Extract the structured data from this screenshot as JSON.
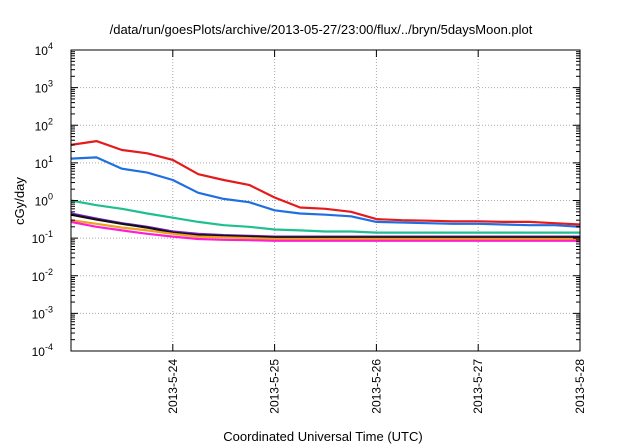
{
  "chart_data": {
    "type": "line",
    "title": "/data/run/goesPlots/archive/2013-05-27/23:00/flux/../bryn/5daysMoon.plot",
    "xlabel": "Coordinated Universal Time (UTC)",
    "ylabel": "cGy/day",
    "y_scale": "log",
    "ylim": [
      0.0001,
      10000
    ],
    "xlim": [
      "2013-05-23T00:00",
      "2013-05-28T00:00"
    ],
    "grid": true,
    "legend": "none",
    "x_tick_labels": [
      "2013-5-24",
      "2013-5-25",
      "2013-5-26",
      "2013-5-27",
      "2013-5-28"
    ],
    "y_ticks": [
      {
        "value": 0.0001,
        "base": "10",
        "exp": "-4"
      },
      {
        "value": 0.001,
        "base": "10",
        "exp": "-3"
      },
      {
        "value": 0.01,
        "base": "10",
        "exp": "-2"
      },
      {
        "value": 0.1,
        "base": "10",
        "exp": "-1"
      },
      {
        "value": 1,
        "base": "10",
        "exp": "0"
      },
      {
        "value": 10,
        "base": "10",
        "exp": "1"
      },
      {
        "value": 100,
        "base": "10",
        "exp": "2"
      },
      {
        "value": 1000,
        "base": "10",
        "exp": "3"
      },
      {
        "value": 10000,
        "base": "10",
        "exp": "4"
      }
    ],
    "x": [
      "2013-05-23T00:00",
      "2013-05-23T06:00",
      "2013-05-23T12:00",
      "2013-05-23T18:00",
      "2013-05-24T00:00",
      "2013-05-24T06:00",
      "2013-05-24T12:00",
      "2013-05-24T18:00",
      "2013-05-25T00:00",
      "2013-05-25T06:00",
      "2013-05-25T12:00",
      "2013-05-25T18:00",
      "2013-05-26T00:00",
      "2013-05-26T06:00",
      "2013-05-26T12:00",
      "2013-05-26T18:00",
      "2013-05-27T00:00",
      "2013-05-27T06:00",
      "2013-05-27T12:00",
      "2013-05-27T18:00",
      "2013-05-28T00:00"
    ],
    "series": [
      {
        "color": "#e41a1c",
        "values": [
          30,
          38,
          22,
          18,
          12,
          5,
          3.5,
          2.6,
          1.2,
          0.65,
          0.6,
          0.5,
          0.32,
          0.3,
          0.29,
          0.28,
          0.28,
          0.27,
          0.27,
          0.25,
          0.23
        ]
      },
      {
        "color": "#1f6fe0",
        "values": [
          13,
          14,
          7,
          5.5,
          3.5,
          1.6,
          1.1,
          0.9,
          0.55,
          0.45,
          0.42,
          0.38,
          0.27,
          0.26,
          0.25,
          0.24,
          0.24,
          0.23,
          0.22,
          0.22,
          0.2
        ]
      },
      {
        "color": "#1fbf8f",
        "values": [
          1.0,
          0.75,
          0.6,
          0.45,
          0.35,
          0.27,
          0.22,
          0.2,
          0.17,
          0.16,
          0.15,
          0.15,
          0.14,
          0.14,
          0.14,
          0.14,
          0.14,
          0.14,
          0.14,
          0.14,
          0.14
        ]
      },
      {
        "color": "#7a1fd0",
        "values": [
          0.45,
          0.33,
          0.25,
          0.2,
          0.15,
          0.13,
          0.12,
          0.115,
          0.11,
          0.11,
          0.11,
          0.11,
          0.11,
          0.11,
          0.11,
          0.11,
          0.11,
          0.11,
          0.11,
          0.11,
          0.11
        ]
      },
      {
        "color": "#111111",
        "values": [
          0.42,
          0.31,
          0.24,
          0.19,
          0.14,
          0.12,
          0.115,
          0.11,
          0.105,
          0.105,
          0.105,
          0.105,
          0.105,
          0.105,
          0.105,
          0.105,
          0.105,
          0.105,
          0.105,
          0.105,
          0.105
        ]
      },
      {
        "color": "#f0a020",
        "values": [
          0.3,
          0.24,
          0.19,
          0.16,
          0.13,
          0.11,
          0.105,
          0.1,
          0.095,
          0.095,
          0.095,
          0.095,
          0.095,
          0.095,
          0.095,
          0.095,
          0.095,
          0.095,
          0.095,
          0.095,
          0.095
        ]
      },
      {
        "color": "#ff1fd0",
        "values": [
          0.27,
          0.2,
          0.16,
          0.13,
          0.11,
          0.095,
          0.09,
          0.088,
          0.085,
          0.085,
          0.085,
          0.085,
          0.085,
          0.085,
          0.085,
          0.085,
          0.085,
          0.085,
          0.085,
          0.085,
          0.085
        ]
      }
    ]
  }
}
